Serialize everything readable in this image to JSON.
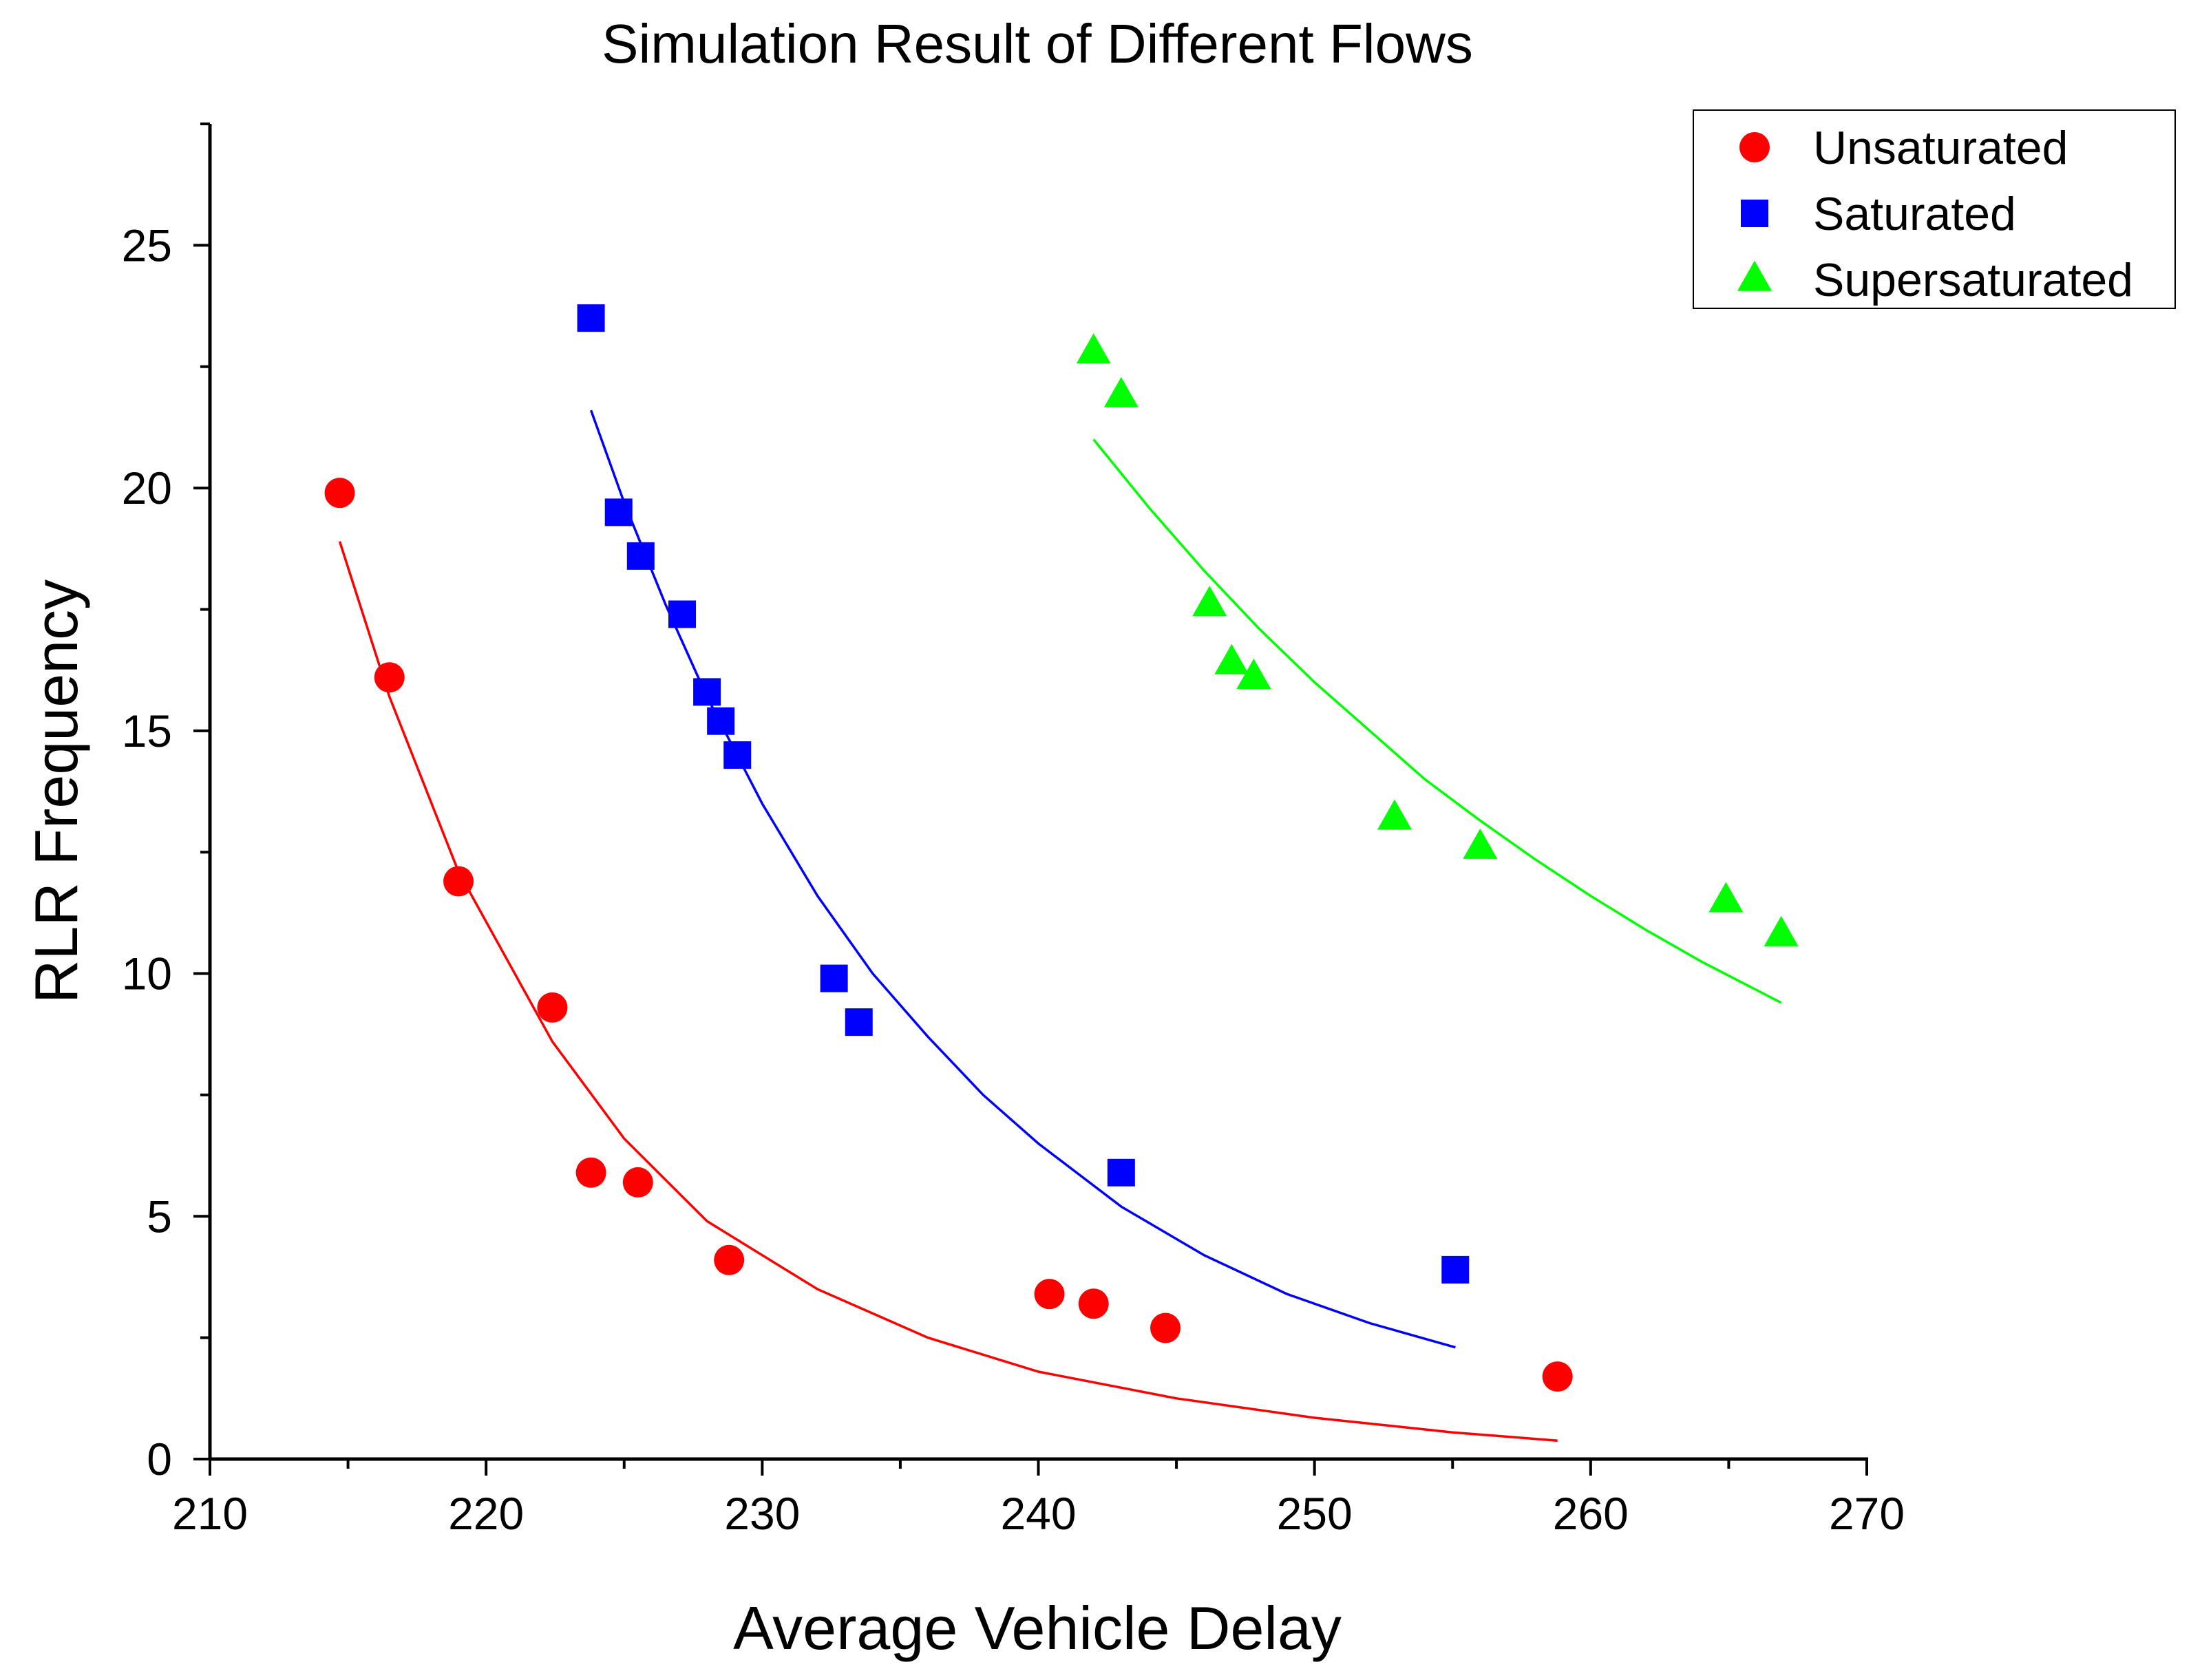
{
  "chart_data": {
    "type": "scatter",
    "title": "Simulation Result of Different Flows",
    "xlabel": "Average Vehicle Delay",
    "ylabel": "RLR Frequency",
    "xlim": [
      210,
      270
    ],
    "ylim": [
      0,
      27.5
    ],
    "xticks": [
      210,
      220,
      230,
      240,
      250,
      260,
      270
    ],
    "yticks": [
      0,
      5,
      10,
      15,
      20,
      25
    ],
    "x_minor_step": 5,
    "y_minor_step": 2.5,
    "grid": false,
    "legend_position": "top-right",
    "series": [
      {
        "name": "Unsaturated",
        "marker": "circle",
        "color": "#ff0000",
        "x": [
          214.7,
          216.5,
          219.0,
          222.4,
          223.8,
          225.5,
          228.8,
          240.4,
          242.0,
          244.6,
          258.8
        ],
        "y": [
          19.9,
          16.1,
          11.9,
          9.3,
          5.9,
          5.7,
          4.1,
          3.4,
          3.2,
          2.7,
          1.7
        ],
        "fit": {
          "x": [
            214.7,
            216.5,
            219.0,
            222.4,
            225.0,
            228.0,
            232.0,
            236.0,
            240.0,
            245.0,
            250.0,
            255.0,
            258.8
          ],
          "y": [
            18.9,
            15.7,
            12.1,
            8.6,
            6.6,
            4.9,
            3.5,
            2.5,
            1.8,
            1.25,
            0.85,
            0.55,
            0.38
          ]
        }
      },
      {
        "name": "Saturated",
        "marker": "square",
        "color": "#0000ff",
        "x": [
          223.8,
          224.8,
          225.6,
          227.1,
          228.0,
          228.5,
          229.1,
          232.6,
          233.5,
          243.0,
          255.1
        ],
        "y": [
          23.5,
          19.5,
          18.6,
          17.4,
          15.8,
          15.2,
          14.5,
          9.9,
          9.0,
          5.9,
          3.9
        ],
        "fit": {
          "x": [
            223.8,
            225.0,
            226.5,
            228.0,
            230.0,
            232.0,
            234.0,
            236.0,
            238.0,
            240.0,
            243.0,
            246.0,
            249.0,
            252.0,
            255.1
          ],
          "y": [
            21.6,
            19.7,
            17.6,
            15.7,
            13.5,
            11.6,
            10.0,
            8.7,
            7.5,
            6.5,
            5.2,
            4.2,
            3.4,
            2.8,
            2.3
          ]
        }
      },
      {
        "name": "Supersaturated",
        "marker": "triangle",
        "color": "#00ff00",
        "x": [
          242.0,
          243.0,
          246.2,
          247.0,
          247.8,
          252.9,
          256.0,
          264.9,
          266.9
        ],
        "y": [
          22.8,
          21.9,
          17.6,
          16.4,
          16.1,
          13.2,
          12.6,
          11.5,
          10.8
        ],
        "fit": {
          "x": [
            242.0,
            244.0,
            246.0,
            248.0,
            250.0,
            252.0,
            254.0,
            256.0,
            258.0,
            260.0,
            262.0,
            264.0,
            266.9
          ],
          "y": [
            21.0,
            19.6,
            18.3,
            17.1,
            16.0,
            15.0,
            14.0,
            13.15,
            12.35,
            11.6,
            10.9,
            10.25,
            9.4
          ]
        }
      }
    ]
  }
}
